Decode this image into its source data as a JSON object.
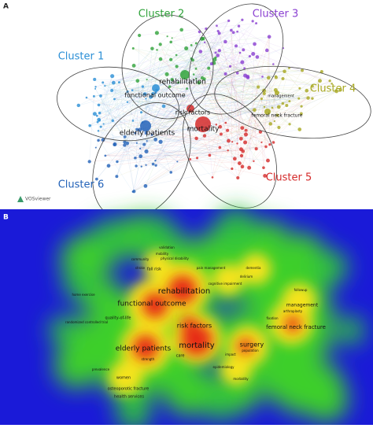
{
  "panel_a": {
    "label": "A",
    "logo": "VOSviewer",
    "clusters": [
      {
        "name": "Cluster 1",
        "color": "#2b8fd6"
      },
      {
        "name": "Cluster 2",
        "color": "#2fa23a"
      },
      {
        "name": "Cluster 3",
        "color": "#8a3fd1"
      },
      {
        "name": "Cluster 4",
        "color": "#a8a821"
      },
      {
        "name": "Cluster 5",
        "color": "#d42a2a"
      },
      {
        "name": "Cluster 6",
        "color": "#2262b8"
      }
    ],
    "terms": [
      "rehabilitation",
      "functional outcome",
      "risk factors",
      "mortality",
      "elderly patients",
      "femoral neck fracture",
      "management"
    ]
  },
  "panel_b": {
    "label": "B",
    "terms": [
      "rehabilitation",
      "functional outcome",
      "risk factors",
      "mortality",
      "elderly patients",
      "surgery",
      "femoral neck fracture",
      "management",
      "quality-of-life",
      "women",
      "osteoporotic fracture",
      "health services",
      "prevalence",
      "care",
      "strength",
      "fall risk",
      "dementia",
      "delirium",
      "arthroplasty",
      "followup",
      "population",
      "impact",
      "morbidity",
      "epidemiology",
      "pain management",
      "cognitive impairment",
      "mobility",
      "community",
      "stroke",
      "validation",
      "physical disability",
      "fixation",
      "randomized controlled trial",
      "home exercise"
    ]
  }
}
